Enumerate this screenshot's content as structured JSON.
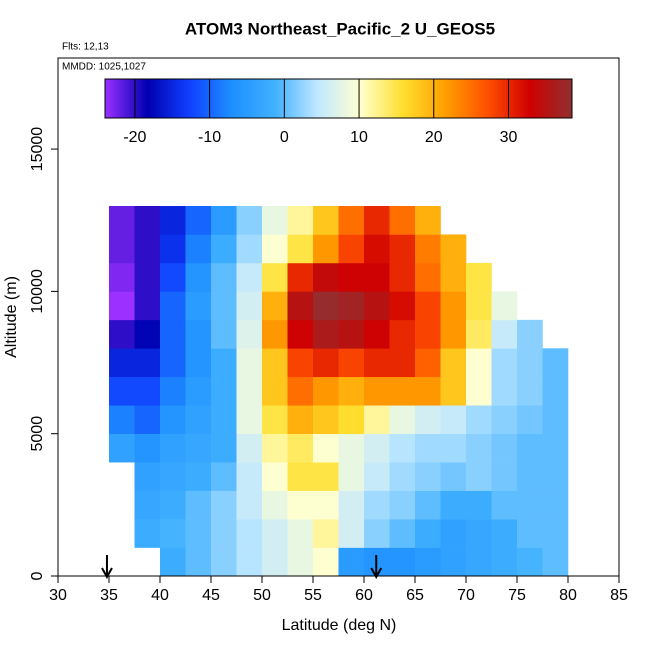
{
  "chart_data": {
    "type": "heatmap",
    "title": "ATOM3 Northeast_Pacific_2 U_GEOS5",
    "annotations": [
      "Flts: 12,13",
      "MMDD: 1025,1027"
    ],
    "x_label": "Latitude (deg N)",
    "y_label": "Altitude (m)",
    "xlim": [
      30,
      85
    ],
    "ylim": [
      0,
      18200
    ],
    "xticks": [
      30,
      35,
      40,
      45,
      50,
      55,
      60,
      65,
      70,
      75,
      80,
      85
    ],
    "yticks": [
      0,
      5000,
      10000,
      15000
    ],
    "xbins": [
      35,
      37.5,
      40,
      42.5,
      45,
      47.5,
      50,
      52.5,
      55,
      57.5,
      60,
      62.5,
      65,
      67.5,
      70,
      72.5,
      75,
      77.5,
      80
    ],
    "ybins": [
      0,
      1000,
      2000,
      3000,
      4000,
      5000,
      6000,
      7000,
      8000,
      9000,
      10000,
      11000,
      12000,
      13000
    ],
    "z": [
      [
        null,
        null,
        -2,
        0,
        2,
        4,
        6,
        8,
        10,
        -5,
        -6,
        -6,
        -5,
        -4,
        -3,
        -2,
        -1,
        0
      ],
      [
        null,
        -2,
        -1,
        0,
        2,
        4,
        6,
        8,
        12,
        6,
        2,
        0,
        -2,
        -4,
        -3,
        -2,
        0,
        0
      ],
      [
        null,
        -3,
        -2,
        0,
        2,
        5,
        8,
        10,
        10,
        6,
        3,
        2,
        0,
        -2,
        -2,
        0,
        0,
        0
      ],
      [
        null,
        -4,
        -3,
        -2,
        0,
        5,
        10,
        15,
        15,
        8,
        5,
        3,
        2,
        1,
        2,
        1,
        0,
        0
      ],
      [
        -4,
        -6,
        -4,
        -3,
        -2,
        6,
        12,
        14,
        10,
        8,
        6,
        4,
        3,
        3,
        2,
        1,
        0,
        0
      ],
      [
        -8,
        -10,
        -6,
        -4,
        -2,
        8,
        15,
        20,
        18,
        16,
        12,
        8,
        6,
        5,
        3,
        2,
        1,
        0
      ],
      [
        -12,
        -12,
        -8,
        -5,
        -2,
        8,
        18,
        25,
        22,
        20,
        22,
        22,
        22,
        18,
        10,
        3,
        2,
        0
      ],
      [
        -15,
        -15,
        -10,
        -6,
        -2,
        8,
        18,
        28,
        30,
        28,
        30,
        30,
        26,
        18,
        10,
        3,
        2,
        0
      ],
      [
        -20,
        -18,
        -10,
        -6,
        0,
        7,
        22,
        33,
        36,
        35,
        33,
        30,
        28,
        22,
        14,
        5,
        2,
        null
      ],
      [
        -24,
        -20,
        -10,
        -5,
        0,
        6,
        20,
        35,
        38,
        37,
        35,
        32,
        28,
        22,
        15,
        8,
        null,
        null
      ],
      [
        -23,
        -20,
        -12,
        -6,
        0,
        5,
        15,
        30,
        34,
        33,
        33,
        30,
        25,
        20,
        15,
        null,
        null,
        null
      ],
      [
        -22,
        -20,
        -14,
        -8,
        -2,
        3,
        10,
        15,
        22,
        28,
        32,
        30,
        24,
        20,
        null,
        null,
        null,
        null
      ],
      [
        -22,
        -20,
        -15,
        -10,
        -5,
        2,
        8,
        12,
        18,
        25,
        30,
        25,
        20,
        null,
        null,
        null,
        null,
        null
      ]
    ],
    "colorbar": {
      "lim": [
        -24,
        38.5
      ],
      "ticks": [
        -20,
        -10,
        0,
        10,
        20,
        30
      ],
      "colors": [
        "#9b30ff",
        "#0000b0",
        "#1040ff",
        "#1e90ff",
        "#40b0ff",
        "#c0e8ff",
        "#ffffd0",
        "#ffe030",
        "#ffa000",
        "#ff5000",
        "#d00000",
        "#903030"
      ]
    },
    "arrow_lats": [
      34.8,
      61.2
    ]
  }
}
